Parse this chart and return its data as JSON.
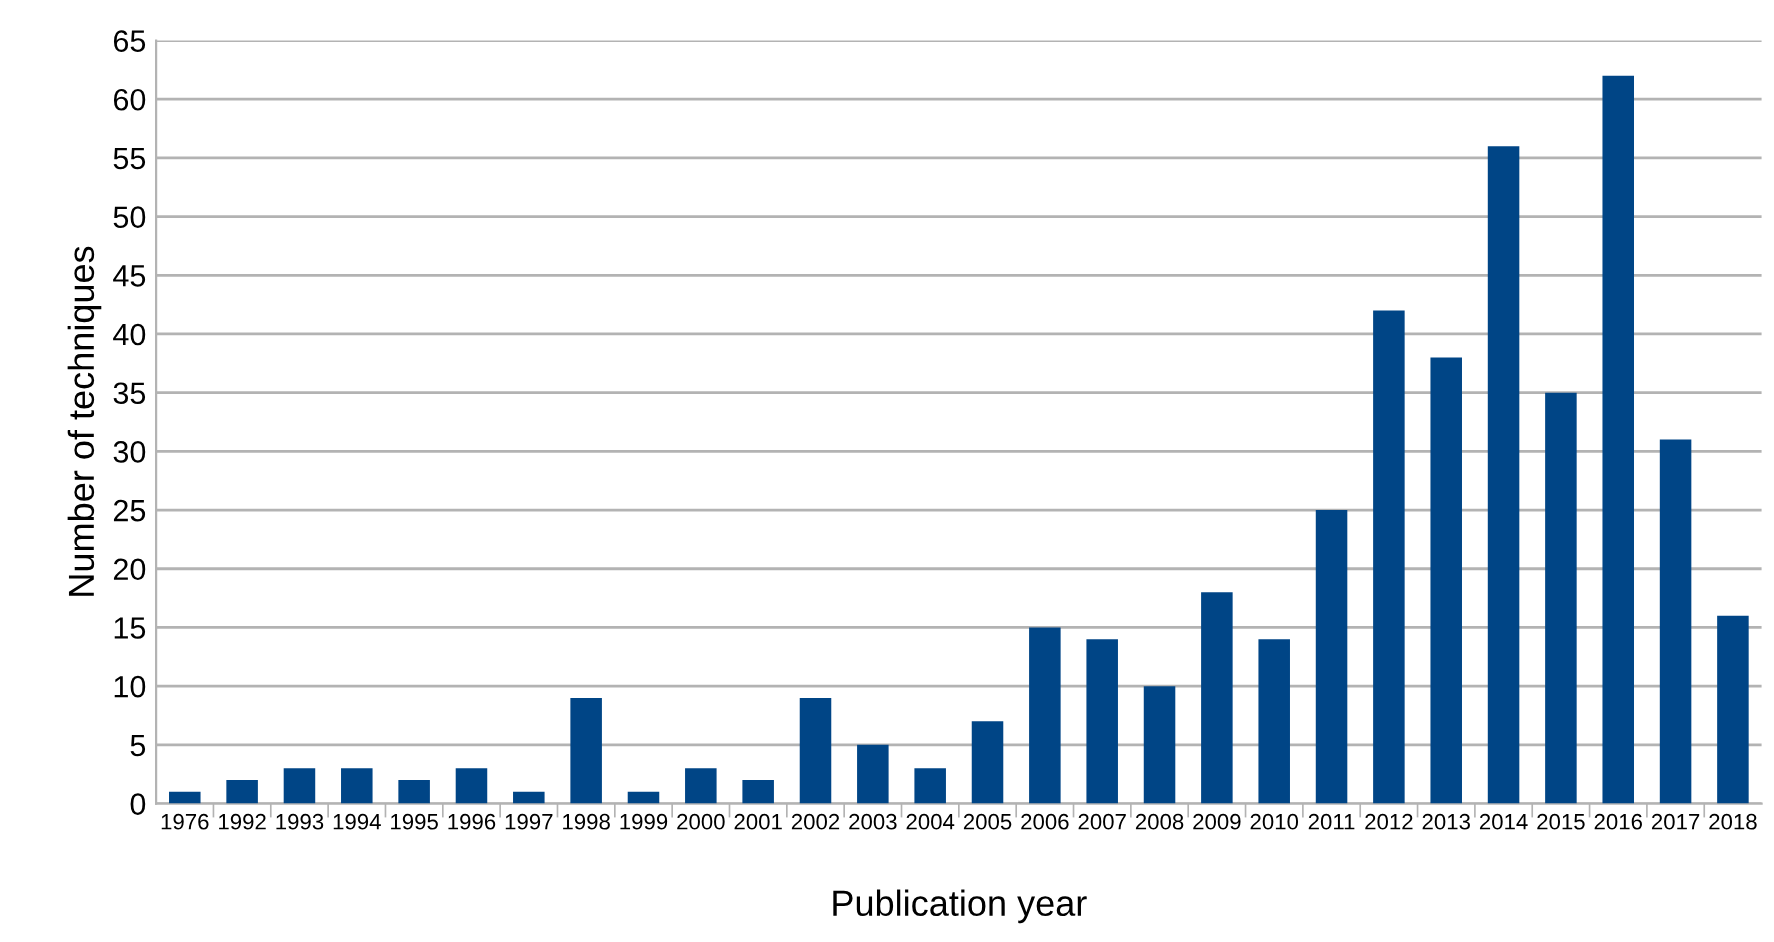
{
  "chart_data": {
    "type": "bar",
    "xlabel": "Publication year",
    "ylabel": "Number of techniques",
    "categories": [
      "1976",
      "1992",
      "1993",
      "1994",
      "1995",
      "1996",
      "1997",
      "1998",
      "1999",
      "2000",
      "2001",
      "2002",
      "2003",
      "2004",
      "2005",
      "2006",
      "2007",
      "2008",
      "2009",
      "2010",
      "2011",
      "2012",
      "2013",
      "2014",
      "2015",
      "2016",
      "2017",
      "2018"
    ],
    "values": [
      1,
      2,
      3,
      3,
      2,
      3,
      1,
      9,
      1,
      3,
      2,
      9,
      5,
      3,
      7,
      15,
      14,
      10,
      18,
      14,
      25,
      42,
      38,
      56,
      35,
      62,
      31,
      16
    ],
    "color": "#004586",
    "ylim": [
      0,
      65
    ],
    "yticks": [
      0,
      5,
      10,
      15,
      20,
      25,
      30,
      35,
      40,
      45,
      50,
      55,
      60,
      65
    ],
    "grid": "y",
    "legend": false
  }
}
